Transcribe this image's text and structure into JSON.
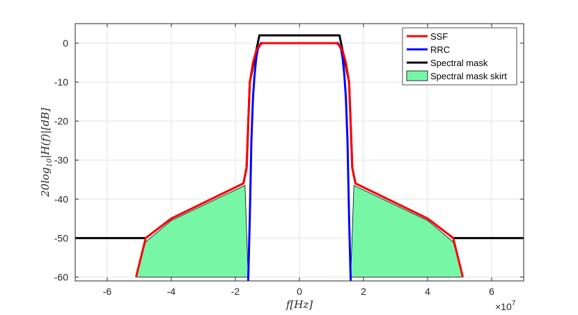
{
  "chart_data": {
    "type": "line",
    "title": "",
    "xlabel": "f[Hz]",
    "ylabel": "20log10|H(f)|[dB]",
    "ylabel_parts": {
      "lead": "20log",
      "sub": "10",
      "rest": "|H(f)|[dB]"
    },
    "x_exponent_label": {
      "base": "×10",
      "exp": "7"
    },
    "xlim": [
      -7,
      7
    ],
    "ylim": [
      -61,
      5
    ],
    "x_unit_scale": 10000000,
    "xticks": [
      -6,
      -4,
      -2,
      0,
      2,
      4,
      6
    ],
    "yticks": [
      0,
      -10,
      -20,
      -30,
      -40,
      -50,
      -60
    ],
    "grid": true,
    "legend_position": "top-right",
    "legend": [
      "SSF",
      "RRC",
      "Spectral mask",
      "Spectral mask skirt"
    ],
    "series": [
      {
        "name": "Spectral mask skirt",
        "kind": "area",
        "color": "#77f7a6",
        "polygons": [
          [
            [
              -5.1,
              -60
            ],
            [
              -4.8,
              -51
            ],
            [
              -4.0,
              -45.5
            ],
            [
              -1.7,
              -36.5
            ],
            [
              -1.6,
              -60
            ]
          ],
          [
            [
              1.6,
              -60
            ],
            [
              1.7,
              -36.5
            ],
            [
              4.0,
              -45.5
            ],
            [
              4.8,
              -51
            ],
            [
              5.1,
              -60
            ]
          ]
        ]
      },
      {
        "name": "Spectral mask",
        "kind": "line",
        "color": "#000000",
        "x": [
          -7,
          -4.8,
          -4.0,
          -1.75,
          -1.65,
          -1.55,
          -1.25,
          1.25,
          1.55,
          1.65,
          1.75,
          4.0,
          4.8,
          7
        ],
        "y": [
          -50,
          -50,
          -45,
          -36,
          -32,
          -10,
          2,
          2,
          -10,
          -32,
          -36,
          -45,
          -50,
          -50
        ]
      },
      {
        "name": "RRC",
        "kind": "line",
        "color": "#0000ff",
        "x": [
          -1.6,
          -1.55,
          -1.5,
          -1.45,
          -1.4,
          -1.35,
          -1.3,
          -1.2,
          1.2,
          1.3,
          1.35,
          1.4,
          1.45,
          1.5,
          1.55,
          1.6
        ],
        "y": [
          -61,
          -45,
          -25,
          -14,
          -8,
          -4,
          -1.5,
          0,
          0,
          -1.5,
          -4,
          -8,
          -14,
          -25,
          -45,
          -61
        ]
      },
      {
        "name": "SSF",
        "kind": "line",
        "color": "#ff0000",
        "x": [
          -5.1,
          -4.8,
          -4.0,
          -1.75,
          -1.65,
          -1.55,
          -1.45,
          -1.35,
          -1.25,
          -1.15,
          -0.8,
          0.8,
          1.15,
          1.25,
          1.35,
          1.45,
          1.55,
          1.65,
          1.75,
          4.0,
          4.8,
          5.1
        ],
        "y": [
          -60,
          -50,
          -45,
          -36,
          -32,
          -10,
          -5,
          -2,
          -0.5,
          0,
          0,
          0,
          0,
          -0.5,
          -2,
          -5,
          -10,
          -32,
          -36,
          -45,
          -50,
          -60
        ]
      }
    ]
  }
}
